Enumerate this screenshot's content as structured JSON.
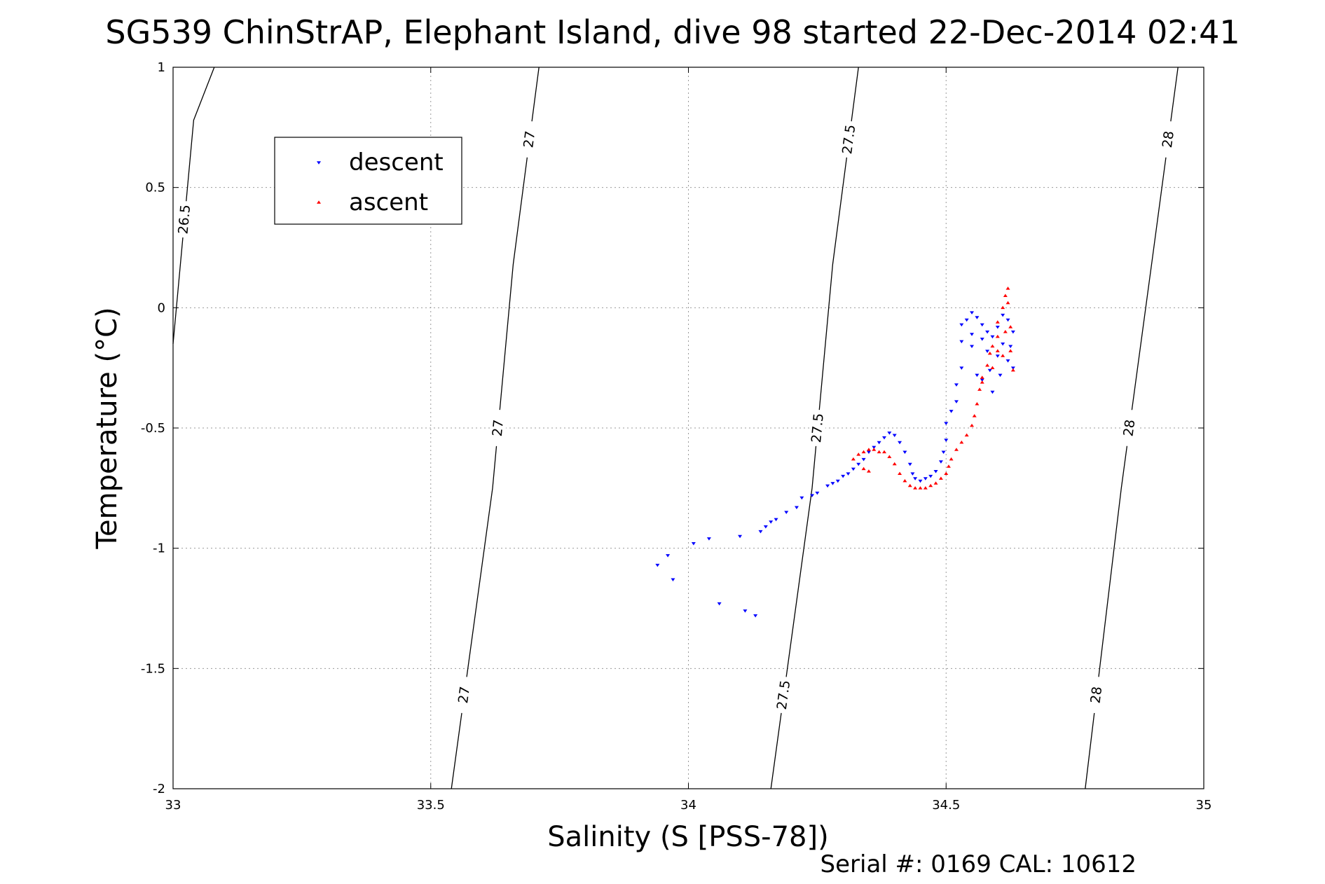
{
  "chart_data": {
    "type": "scatter",
    "title": "SG539 ChinStrAP, Elephant Island, dive 98 started 22-Dec-2014 02:41",
    "xlabel": "Salinity (S [PSS-78])",
    "ylabel": "Temperature (°C)",
    "xlim": [
      33,
      35
    ],
    "ylim": [
      -2,
      1
    ],
    "xticks": [
      "33",
      "33.5",
      "34",
      "34.5",
      "35"
    ],
    "yticks": [
      "-2",
      "-1.5",
      "-1",
      "-0.5",
      "0",
      "0.5",
      "1"
    ],
    "grid": true,
    "legend": {
      "position": "top-left",
      "entries": [
        "descent",
        "ascent"
      ]
    },
    "footer": "Serial #: 0169 CAL: 10612",
    "colors": {
      "descent": "#0000ff",
      "ascent": "#ff0000",
      "contour": "#000000"
    },
    "contours": [
      {
        "label": "26.5",
        "points": [
          [
            33.0,
            -0.15
          ],
          [
            33.04,
            0.78
          ],
          [
            33.08,
            1.0
          ]
        ]
      },
      {
        "label": "27",
        "points": [
          [
            33.54,
            -2.0
          ],
          [
            33.62,
            -0.75
          ],
          [
            33.66,
            0.18
          ],
          [
            33.71,
            1.0
          ]
        ]
      },
      {
        "label": "27.5",
        "points": [
          [
            34.16,
            -2.0
          ],
          [
            34.24,
            -0.75
          ],
          [
            34.28,
            0.18
          ],
          [
            34.33,
            1.0
          ]
        ]
      },
      {
        "label": "28",
        "points": [
          [
            34.77,
            -2.0
          ],
          [
            34.84,
            -0.75
          ],
          [
            34.9,
            0.2
          ],
          [
            34.95,
            1.0
          ]
        ]
      }
    ],
    "series": [
      {
        "name": "descent",
        "marker": "triangle-down",
        "points": [
          [
            33.94,
            -1.07
          ],
          [
            33.96,
            -1.03
          ],
          [
            33.97,
            -1.13
          ],
          [
            34.01,
            -0.98
          ],
          [
            34.04,
            -0.96
          ],
          [
            34.06,
            -1.23
          ],
          [
            34.1,
            -0.95
          ],
          [
            34.11,
            -1.26
          ],
          [
            34.13,
            -1.28
          ],
          [
            34.14,
            -0.93
          ],
          [
            34.15,
            -0.91
          ],
          [
            34.16,
            -0.89
          ],
          [
            34.17,
            -0.88
          ],
          [
            34.19,
            -0.85
          ],
          [
            34.21,
            -0.83
          ],
          [
            34.22,
            -0.79
          ],
          [
            34.24,
            -0.78
          ],
          [
            34.25,
            -0.77
          ],
          [
            34.27,
            -0.74
          ],
          [
            34.28,
            -0.73
          ],
          [
            34.29,
            -0.72
          ],
          [
            34.3,
            -0.7
          ],
          [
            34.31,
            -0.69
          ],
          [
            34.32,
            -0.67
          ],
          [
            34.33,
            -0.65
          ],
          [
            34.34,
            -0.63
          ],
          [
            34.35,
            -0.6
          ],
          [
            34.36,
            -0.58
          ],
          [
            34.37,
            -0.56
          ],
          [
            34.38,
            -0.54
          ],
          [
            34.39,
            -0.52
          ],
          [
            34.4,
            -0.53
          ],
          [
            34.41,
            -0.56
          ],
          [
            34.42,
            -0.6
          ],
          [
            34.43,
            -0.65
          ],
          [
            34.435,
            -0.69
          ],
          [
            34.44,
            -0.71
          ],
          [
            34.45,
            -0.72
          ],
          [
            34.46,
            -0.71
          ],
          [
            34.47,
            -0.7
          ],
          [
            34.48,
            -0.68
          ],
          [
            34.49,
            -0.64
          ],
          [
            34.495,
            -0.6
          ],
          [
            34.5,
            -0.55
          ],
          [
            34.5,
            -0.48
          ],
          [
            34.51,
            -0.43
          ],
          [
            34.52,
            -0.39
          ],
          [
            34.52,
            -0.32
          ],
          [
            34.53,
            -0.25
          ],
          [
            34.53,
            -0.14
          ],
          [
            34.53,
            -0.07
          ],
          [
            34.54,
            -0.05
          ],
          [
            34.55,
            -0.02
          ],
          [
            34.56,
            -0.04
          ],
          [
            34.57,
            -0.07
          ],
          [
            34.57,
            -0.13
          ],
          [
            34.58,
            -0.1
          ],
          [
            34.58,
            -0.18
          ],
          [
            34.59,
            -0.12
          ],
          [
            34.6,
            -0.08
          ],
          [
            34.6,
            -0.2
          ],
          [
            34.61,
            -0.03
          ],
          [
            34.61,
            -0.15
          ],
          [
            34.62,
            -0.05
          ],
          [
            34.62,
            -0.22
          ],
          [
            34.63,
            -0.25
          ],
          [
            34.63,
            -0.1
          ],
          [
            34.56,
            -0.28
          ],
          [
            34.57,
            -0.3
          ],
          [
            34.585,
            -0.26
          ],
          [
            34.59,
            -0.35
          ],
          [
            34.55,
            -0.16
          ],
          [
            34.55,
            -0.11
          ],
          [
            34.605,
            -0.28
          ],
          [
            34.625,
            -0.16
          ]
        ]
      },
      {
        "name": "ascent",
        "marker": "triangle-up",
        "points": [
          [
            34.32,
            -0.63
          ],
          [
            34.33,
            -0.61
          ],
          [
            34.34,
            -0.6
          ],
          [
            34.35,
            -0.59
          ],
          [
            34.36,
            -0.59
          ],
          [
            34.37,
            -0.6
          ],
          [
            34.38,
            -0.6
          ],
          [
            34.39,
            -0.62
          ],
          [
            34.4,
            -0.65
          ],
          [
            34.41,
            -0.69
          ],
          [
            34.42,
            -0.72
          ],
          [
            34.43,
            -0.74
          ],
          [
            34.44,
            -0.75
          ],
          [
            34.45,
            -0.75
          ],
          [
            34.46,
            -0.75
          ],
          [
            34.47,
            -0.74
          ],
          [
            34.48,
            -0.73
          ],
          [
            34.49,
            -0.71
          ],
          [
            34.5,
            -0.69
          ],
          [
            34.505,
            -0.66
          ],
          [
            34.51,
            -0.63
          ],
          [
            34.52,
            -0.59
          ],
          [
            34.53,
            -0.56
          ],
          [
            34.54,
            -0.53
          ],
          [
            34.55,
            -0.49
          ],
          [
            34.555,
            -0.45
          ],
          [
            34.56,
            -0.4
          ],
          [
            34.565,
            -0.34
          ],
          [
            34.57,
            -0.29
          ],
          [
            34.58,
            -0.24
          ],
          [
            34.585,
            -0.19
          ],
          [
            34.59,
            -0.16
          ],
          [
            34.6,
            -0.12
          ],
          [
            34.6,
            -0.06
          ],
          [
            34.61,
            0.0
          ],
          [
            34.615,
            0.05
          ],
          [
            34.62,
            0.08
          ],
          [
            34.62,
            0.02
          ],
          [
            34.625,
            -0.08
          ],
          [
            34.625,
            -0.18
          ],
          [
            34.63,
            -0.26
          ],
          [
            34.61,
            -0.2
          ],
          [
            34.59,
            -0.25
          ],
          [
            34.57,
            -0.31
          ],
          [
            34.34,
            -0.67
          ],
          [
            34.35,
            -0.68
          ],
          [
            34.615,
            -0.1
          ],
          [
            34.6,
            -0.18
          ]
        ]
      }
    ]
  }
}
